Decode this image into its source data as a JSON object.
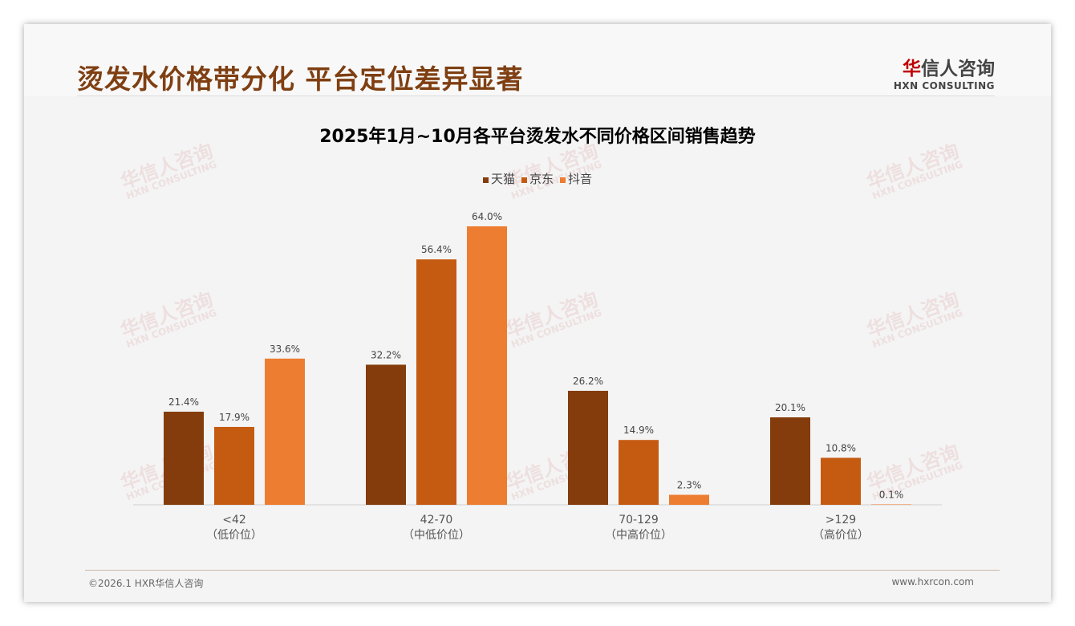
{
  "header": {
    "title": "烫发水价格带分化 平台定位差异显著",
    "logo_cn_accent": "华",
    "logo_cn": "信人咨询",
    "logo_en": "HXN CONSULTING"
  },
  "footer": {
    "copyright": "©2026.1 HXR华信人咨询",
    "url": "www.hxrcon.com"
  },
  "chart_data": {
    "type": "bar",
    "title": "2025年1月~10月各平台烫发水不同价格区间销售趋势",
    "categories": [
      {
        "range": "<42",
        "label": "（低价位）"
      },
      {
        "range": "42-70",
        "label": "（中低价位）"
      },
      {
        "range": "70-129",
        "label": "（中高价位）"
      },
      {
        "range": ">129",
        "label": "（高价位）"
      }
    ],
    "series": [
      {
        "name": "天猫",
        "color": "#843c0c",
        "values": [
          21.4,
          32.2,
          26.2,
          20.1
        ]
      },
      {
        "name": "京东",
        "color": "#c55a11",
        "values": [
          17.9,
          56.4,
          14.9,
          10.8
        ]
      },
      {
        "name": "抖音",
        "color": "#ed7d31",
        "values": [
          33.6,
          64.0,
          2.3,
          0.1
        ]
      }
    ],
    "unit": "%",
    "ylim": [
      0,
      64
    ],
    "legend": "top",
    "grid": false
  }
}
